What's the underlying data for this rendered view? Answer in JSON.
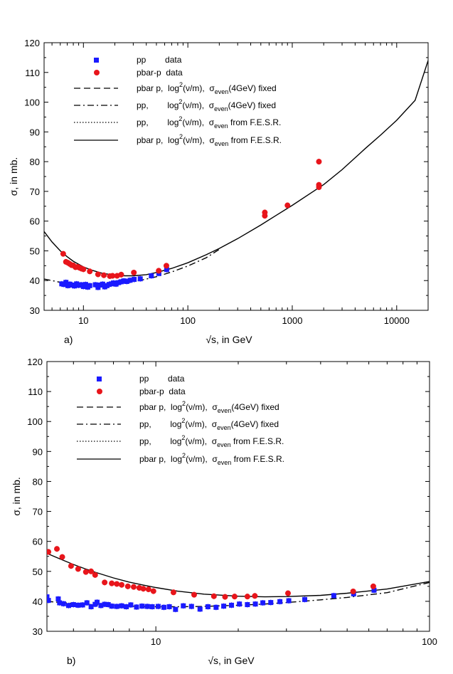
{
  "chart_data": [
    {
      "panel": "a)",
      "type": "scatter",
      "xscale": "log",
      "xlabel": "√s, in GeV",
      "ylabel": "σ, in mb.",
      "xlim": [
        4.2,
        20000
      ],
      "ylim": [
        30,
        120
      ],
      "xticks": [
        10,
        100,
        1000,
        10000
      ],
      "yticks": [
        30,
        40,
        50,
        60,
        70,
        80,
        90,
        100,
        110,
        120
      ],
      "legend": [
        {
          "sample": "square",
          "label": "pp        data"
        },
        {
          "sample": "circle",
          "label": "pbar-p  data"
        },
        {
          "sample": "dashed",
          "text": "pbar p,  log",
          "sup": "2",
          "mid": "(ν/m),  σ",
          "sub": "even",
          "tail": "(4GeV) fixed"
        },
        {
          "sample": "dashdot",
          "text": "pp,        log",
          "sup": "2",
          "mid": "(ν/m),  σ",
          "sub": "even",
          "tail": "(4GeV) fixed"
        },
        {
          "sample": "dotted",
          "text": "pp,        log",
          "sup": "2",
          "mid": "(ν/m),  σ",
          "sub": "even",
          "tail": " from F.E.S.R."
        },
        {
          "sample": "solid",
          "text": "pbar p,  log",
          "sup": "2",
          "mid": "(ν/m),  σ",
          "sub": "even",
          "tail": " from F.E.S.R."
        }
      ],
      "series": [
        {
          "name": "pp data",
          "marker": "square",
          "color": "#1a1aff",
          "x": [
            6.2,
            6.5,
            6.8,
            7.1,
            7.4,
            7.8,
            8.2,
            8.6,
            9.0,
            9.5,
            10.0,
            10.5,
            11.0,
            11.5,
            13.0,
            13.8,
            14.5,
            15.3,
            16.0,
            16.8,
            17.6,
            18.5,
            19.4,
            20.5,
            21.6,
            23.0,
            24.4,
            26.0,
            28.0,
            30.6,
            35.0,
            44.7,
            52.8,
            62.7
          ],
          "y": [
            38.9,
            38.7,
            39.4,
            38.3,
            38.8,
            38.5,
            38.2,
            38.9,
            38.4,
            38.6,
            38.0,
            38.7,
            37.8,
            38.3,
            38.6,
            37.7,
            38.5,
            38.8,
            37.9,
            38.3,
            38.7,
            38.9,
            39.2,
            38.8,
            39.3,
            39.6,
            39.9,
            39.7,
            40.1,
            40.4,
            40.6,
            41.6,
            42.4,
            43.7
          ]
        },
        {
          "name": "pbar-p data",
          "marker": "circle",
          "color": "#e8151b",
          "x": [
            6.4,
            6.8,
            7.1,
            7.4,
            7.7,
            8.0,
            8.4,
            8.8,
            9.2,
            9.6,
            10.0,
            11.5,
            13.8,
            15.7,
            17.9,
            19.0,
            21.0,
            23.0,
            30.4,
            52.6,
            62.3,
            546,
            546,
            900,
            1800,
            1800,
            1800
          ],
          "y": [
            49.0,
            46.3,
            46.0,
            45.6,
            45.2,
            45.1,
            44.5,
            44.6,
            44.3,
            44.0,
            43.8,
            43.1,
            42.1,
            41.8,
            41.5,
            41.6,
            41.6,
            42.0,
            42.7,
            43.3,
            45.0,
            61.8,
            62.9,
            65.3,
            80.0,
            72.2,
            71.4
          ]
        },
        {
          "name": "pbar p fit",
          "style": "solid",
          "x": [
            4.2,
            5,
            6,
            7,
            8,
            10,
            12,
            15,
            20,
            25,
            30,
            40,
            50,
            70,
            100,
            150,
            200,
            300,
            500,
            700,
            1000,
            1500,
            2000,
            3000,
            5000,
            7000,
            10000,
            15000,
            20000
          ],
          "y": [
            56.5,
            53.0,
            50.0,
            48.0,
            46.5,
            44.6,
            43.5,
            42.5,
            41.8,
            41.6,
            41.6,
            42.0,
            42.7,
            44.1,
            46.0,
            48.7,
            50.8,
            54.1,
            58.7,
            61.9,
            65.3,
            69.4,
            72.3,
            77.3,
            84.4,
            88.9,
            93.9,
            100.6,
            114.0
          ]
        },
        {
          "name": "pp fit",
          "style": "dashdot",
          "x": [
            4.2,
            5,
            6,
            7,
            8,
            10,
            12,
            15,
            20,
            25,
            30,
            40,
            50,
            70,
            100,
            150,
            200
          ],
          "y": [
            40.5,
            40.0,
            39.4,
            38.9,
            38.6,
            38.3,
            38.2,
            38.3,
            38.7,
            39.1,
            39.6,
            40.5,
            41.3,
            42.9,
            44.9,
            47.7,
            50.5
          ]
        }
      ]
    },
    {
      "panel": "b)",
      "type": "scatter",
      "xscale": "log",
      "xlabel": "√s, in GeV",
      "ylabel": "σ, in mb.",
      "xlim": [
        4.0,
        100
      ],
      "ylim": [
        30,
        120
      ],
      "xticks": [
        10,
        100
      ],
      "yticks": [
        30,
        40,
        50,
        60,
        70,
        80,
        90,
        100,
        110,
        120
      ],
      "legend": [
        {
          "sample": "square",
          "label": "pp        data"
        },
        {
          "sample": "circle",
          "label": "pbar-p  data"
        },
        {
          "sample": "dashed",
          "text": "pbar p,  log",
          "sup": "2",
          "mid": "(ν/m),  σ",
          "sub": "even",
          "tail": "(4GeV) fixed"
        },
        {
          "sample": "dashdot",
          "text": "pp,        log",
          "sup": "2",
          "mid": "(ν/m),  σ",
          "sub": "even",
          "tail": "(4GeV) fixed"
        },
        {
          "sample": "dotted",
          "text": "pp,        log",
          "sup": "2",
          "mid": "(ν/m),  σ",
          "sub": "even",
          "tail": " from F.E.S.R."
        },
        {
          "sample": "solid",
          "text": "pbar p,  log",
          "sup": "2",
          "mid": "(ν/m),  σ",
          "sub": "even",
          "tail": " from F.E.S.R."
        }
      ],
      "series": [
        {
          "name": "pp data",
          "marker": "square",
          "color": "#1a1aff",
          "x": [
            4.0,
            4.05,
            4.4,
            4.45,
            4.6,
            4.8,
            5.0,
            5.2,
            5.4,
            5.6,
            5.8,
            6.0,
            6.1,
            6.3,
            6.5,
            6.7,
            6.9,
            7.2,
            7.5,
            7.8,
            8.1,
            8.5,
            8.9,
            9.3,
            9.7,
            10.2,
            10.7,
            11.2,
            11.8,
            12.6,
            13.5,
            14.5,
            15.5,
            16.6,
            17.7,
            18.9,
            20.2,
            21.6,
            23.1,
            24.6,
            26.3,
            28.4,
            30.6,
            35.0,
            44.7,
            52.8,
            62.7
          ],
          "y": [
            41.5,
            40.3,
            40.8,
            39.5,
            39.2,
            38.6,
            38.9,
            38.7,
            38.8,
            39.5,
            38.2,
            39.0,
            39.7,
            38.6,
            39.0,
            38.9,
            38.4,
            38.3,
            38.5,
            38.2,
            38.8,
            38.1,
            38.4,
            38.3,
            38.2,
            38.3,
            38.0,
            38.2,
            37.3,
            38.5,
            38.3,
            37.4,
            38.2,
            38.0,
            38.4,
            38.7,
            39.1,
            38.9,
            39.1,
            39.5,
            39.6,
            39.9,
            40.2,
            40.6,
            41.9,
            42.5,
            43.7
          ]
        },
        {
          "name": "pbar-p data",
          "marker": "circle",
          "color": "#e8151b",
          "x": [
            4.05,
            4.35,
            4.55,
            4.9,
            5.2,
            5.55,
            5.8,
            6.0,
            6.5,
            6.9,
            7.2,
            7.5,
            7.9,
            8.3,
            8.7,
            9.0,
            9.4,
            9.8,
            11.6,
            13.8,
            16.3,
            17.9,
            19.4,
            21.6,
            23.0,
            30.4,
            52.6,
            62.3
          ],
          "y": [
            56.5,
            57.5,
            54.8,
            51.8,
            50.8,
            49.8,
            50.0,
            48.8,
            46.3,
            46.0,
            45.8,
            45.5,
            45.0,
            44.8,
            44.5,
            44.2,
            44.0,
            43.4,
            43.0,
            42.2,
            41.7,
            41.5,
            41.6,
            41.6,
            41.8,
            42.7,
            43.3,
            45.0
          ]
        },
        {
          "name": "pbar p fit",
          "style": "solid",
          "x": [
            4.0,
            4.5,
            5,
            5.5,
            6,
            7,
            8,
            9,
            10,
            12,
            15,
            20,
            25,
            30,
            40,
            50,
            70,
            100
          ],
          "y": [
            56.0,
            54.0,
            52.3,
            50.9,
            49.7,
            47.8,
            46.4,
            45.4,
            44.6,
            43.4,
            42.4,
            41.7,
            41.5,
            41.6,
            42.0,
            42.7,
            44.1,
            46.6
          ]
        },
        {
          "name": "pp fit",
          "style": "dashdot",
          "x": [
            4.0,
            4.5,
            5,
            6,
            7,
            8,
            10,
            12,
            15,
            20,
            25,
            30,
            40,
            50,
            70,
            100
          ],
          "y": [
            40.0,
            39.6,
            39.3,
            38.8,
            38.6,
            38.4,
            38.2,
            38.2,
            38.3,
            38.7,
            39.1,
            39.6,
            40.5,
            41.3,
            42.9,
            46.3
          ]
        }
      ]
    }
  ]
}
